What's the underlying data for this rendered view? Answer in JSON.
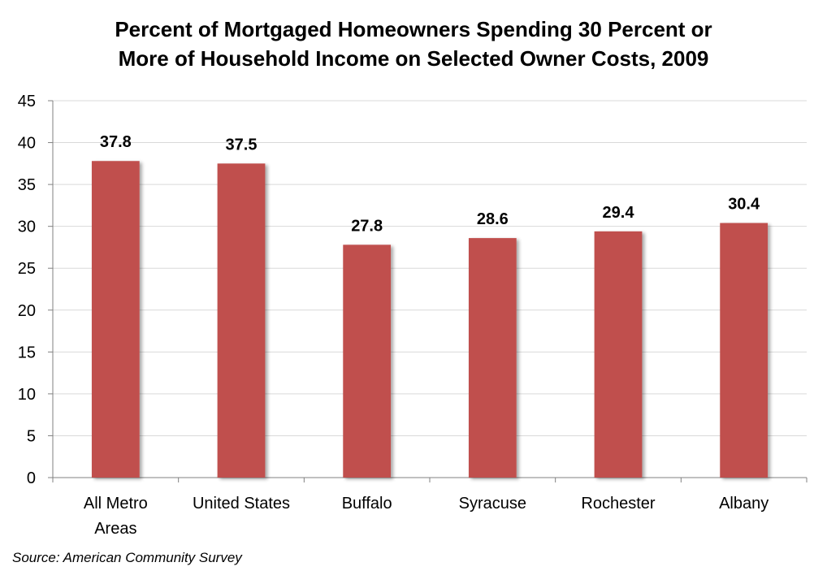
{
  "chart_data": {
    "type": "bar",
    "title_lines": [
      "Percent of Mortgaged Homeowners Spending 30 Percent or",
      "More of Household Income on Selected Owner Costs, 2009"
    ],
    "categories": [
      [
        "All Metro",
        "Areas"
      ],
      [
        "United States"
      ],
      [
        "Buffalo"
      ],
      [
        "Syracuse"
      ],
      [
        "Rochester"
      ],
      [
        "Albany"
      ]
    ],
    "values": [
      37.8,
      37.5,
      27.8,
      28.6,
      29.4,
      30.4
    ],
    "data_labels": [
      "37.8",
      "37.5",
      "27.8",
      "28.6",
      "29.4",
      "30.4"
    ],
    "ylim": [
      0,
      45
    ],
    "yticks": [
      0,
      5,
      10,
      15,
      20,
      25,
      30,
      35,
      40,
      45
    ],
    "xlabel": "",
    "ylabel": "",
    "grid": true,
    "bar_color": "#c0504d",
    "source": "Source: American Community Survey"
  }
}
